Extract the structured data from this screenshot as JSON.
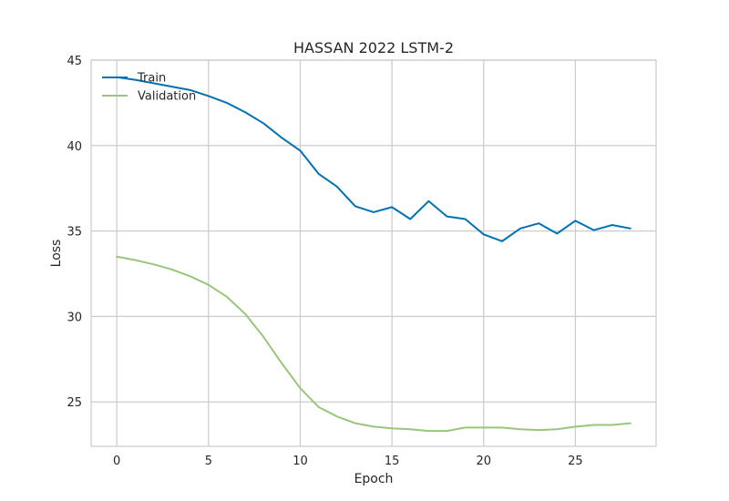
{
  "chart_data": {
    "type": "line",
    "title": "HASSAN 2022 LSTM-2",
    "xlabel": "Epoch",
    "ylabel": "Loss",
    "xlim": [
      -1.4,
      29.4
    ],
    "ylim": [
      22.4,
      45
    ],
    "xticks": [
      0,
      5,
      10,
      15,
      20,
      25
    ],
    "yticks": [
      25,
      30,
      35,
      40,
      45
    ],
    "grid": true,
    "legend_position": "top-left",
    "x": [
      0,
      1,
      2,
      3,
      4,
      5,
      6,
      7,
      8,
      9,
      10,
      11,
      12,
      13,
      14,
      15,
      16,
      17,
      18,
      19,
      20,
      21,
      22,
      23,
      24,
      25,
      26,
      27,
      28
    ],
    "series": [
      {
        "name": "Train",
        "color": "#0072b2",
        "values": [
          44.0,
          43.85,
          43.65,
          43.45,
          43.25,
          42.9,
          42.5,
          41.95,
          41.3,
          40.45,
          39.7,
          38.35,
          37.6,
          36.45,
          36.1,
          36.4,
          35.7,
          36.75,
          35.85,
          35.7,
          34.8,
          34.4,
          35.15,
          35.45,
          34.85,
          35.6,
          35.05,
          35.35,
          35.15
        ]
      },
      {
        "name": "Validation",
        "color": "#98c67a",
        "values": [
          33.5,
          33.3,
          33.05,
          32.75,
          32.35,
          31.85,
          31.15,
          30.15,
          28.8,
          27.25,
          25.8,
          24.7,
          24.15,
          23.75,
          23.55,
          23.45,
          23.4,
          23.3,
          23.3,
          23.5,
          23.5,
          23.5,
          23.4,
          23.35,
          23.4,
          23.55,
          23.65,
          23.65,
          23.75
        ]
      }
    ]
  }
}
